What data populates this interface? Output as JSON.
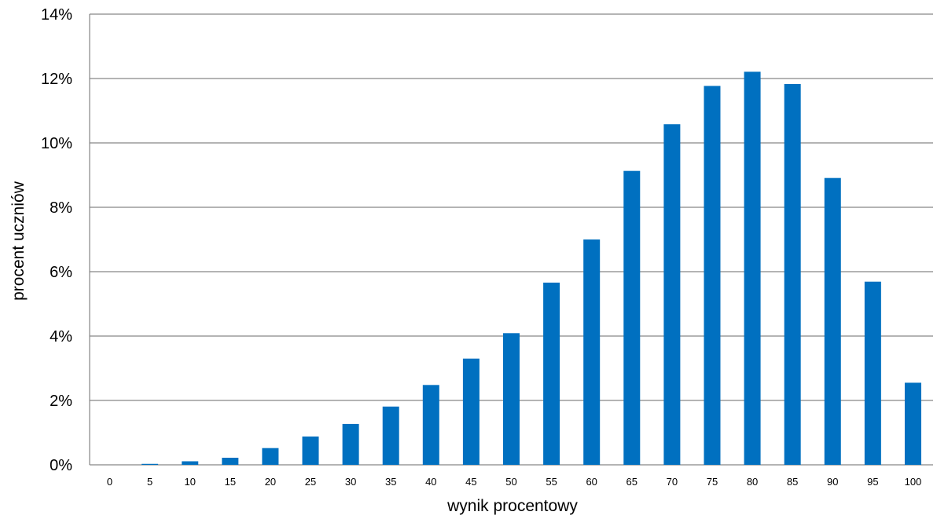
{
  "chart_data": {
    "type": "bar",
    "xlabel": "wynik procentowy",
    "ylabel": "procent uczniów",
    "categories": [
      "0",
      "5",
      "10",
      "15",
      "20",
      "25",
      "30",
      "35",
      "40",
      "45",
      "50",
      "55",
      "60",
      "65",
      "70",
      "75",
      "80",
      "85",
      "90",
      "95",
      "100"
    ],
    "values": [
      0,
      0.03,
      0.11,
      0.22,
      0.52,
      0.88,
      1.27,
      1.81,
      2.48,
      3.3,
      4.09,
      5.66,
      7.0,
      9.13,
      10.58,
      11.77,
      12.21,
      11.83,
      8.91,
      5.69,
      2.55
    ],
    "y_unit": "%",
    "ylim": [
      0,
      14
    ],
    "y_ticks": [
      "0%",
      "2%",
      "4%",
      "6%",
      "8%",
      "10%",
      "12%",
      "14%"
    ],
    "grid": true,
    "bar_color": "#0070c0",
    "grid_color": "#868686"
  }
}
